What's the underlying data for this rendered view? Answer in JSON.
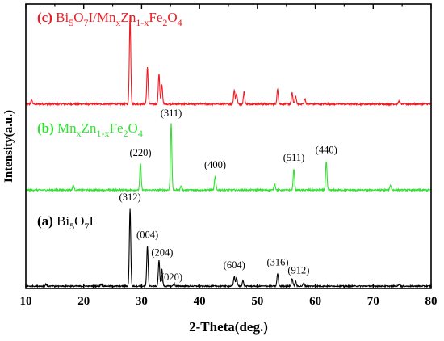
{
  "chart_data": {
    "type": "line",
    "xlabel": "2-Theta(deg.)",
    "ylabel": "Intensity(a.u.)",
    "xlim": [
      10,
      80
    ],
    "xticks": [
      "10",
      "20",
      "30",
      "40",
      "50",
      "60",
      "70",
      "80"
    ],
    "grid": false,
    "series": [
      {
        "letter": "(c)",
        "label_parts": [
          {
            "t": "Bi",
            "s": "n"
          },
          {
            "t": "5",
            "s": "sub"
          },
          {
            "t": "O",
            "s": "n"
          },
          {
            "t": "7",
            "s": "sub"
          },
          {
            "t": "I/Mn",
            "s": "n"
          },
          {
            "t": "x",
            "s": "sub"
          },
          {
            "t": "Zn",
            "s": "n"
          },
          {
            "t": "1-x",
            "s": "sub"
          },
          {
            "t": "Fe",
            "s": "n"
          },
          {
            "t": "2",
            "s": "sub"
          },
          {
            "t": "O",
            "s": "n"
          },
          {
            "t": "4",
            "s": "sub"
          }
        ],
        "color": "#ee1c24",
        "baseline": 0.3,
        "peaks": [
          [
            11.0,
            1.2
          ],
          [
            28.0,
            25.5
          ],
          [
            31.0,
            10.5
          ],
          [
            33.0,
            8.8
          ],
          [
            33.5,
            5.5
          ],
          [
            46.0,
            4.0
          ],
          [
            46.4,
            3.0
          ],
          [
            47.7,
            3.5
          ],
          [
            53.5,
            4.2
          ],
          [
            56.0,
            3.2
          ],
          [
            56.6,
            2.2
          ],
          [
            58.2,
            1.4
          ],
          [
            74.5,
            0.9
          ]
        ]
      },
      {
        "letter": "(b)",
        "label_parts": [
          {
            "t": "Mn",
            "s": "n"
          },
          {
            "t": "x",
            "s": "sub"
          },
          {
            "t": "Zn",
            "s": "n"
          },
          {
            "t": "1-x",
            "s": "sub"
          },
          {
            "t": "Fe",
            "s": "n"
          },
          {
            "t": "2",
            "s": "sub"
          },
          {
            "t": "O",
            "s": "n"
          },
          {
            "t": "4",
            "s": "sub"
          }
        ],
        "color": "#33e033",
        "baseline": 0.2,
        "peaks": [
          [
            18.2,
            1.5
          ],
          [
            29.8,
            8.0
          ],
          [
            35.1,
            20.5
          ],
          [
            36.8,
            1.2
          ],
          [
            42.7,
            4.2
          ],
          [
            53.0,
            1.8
          ],
          [
            56.3,
            6.5
          ],
          [
            61.9,
            8.8
          ],
          [
            73.0,
            1.5
          ]
        ],
        "peak_labels": [
          {
            "x": 29.8,
            "text": "(220)"
          },
          {
            "x": 35.1,
            "text": "(311)"
          },
          {
            "x": 42.7,
            "text": "(400)"
          },
          {
            "x": 56.3,
            "text": "(511)"
          },
          {
            "x": 61.9,
            "text": "(440)"
          }
        ]
      },
      {
        "letter": "(a)",
        "label_parts": [
          {
            "t": "Bi",
            "s": "n"
          },
          {
            "t": "5",
            "s": "sub"
          },
          {
            "t": "O",
            "s": "n"
          },
          {
            "t": "7",
            "s": "sub"
          },
          {
            "t": "I",
            "s": "n"
          }
        ],
        "color": "#000000",
        "baseline": 0.3,
        "peaks": [
          [
            13.5,
            0.8
          ],
          [
            23.0,
            0.8
          ],
          [
            28.0,
            32.0
          ],
          [
            31.0,
            16.5
          ],
          [
            33.0,
            10.5
          ],
          [
            33.5,
            7.0
          ],
          [
            35.6,
            1.2
          ],
          [
            46.0,
            4.0
          ],
          [
            46.4,
            3.5
          ],
          [
            47.5,
            2.2
          ],
          [
            53.5,
            5.2
          ],
          [
            56.0,
            3.2
          ],
          [
            56.6,
            2.0
          ],
          [
            58.0,
            1.2
          ],
          [
            74.5,
            0.9
          ]
        ],
        "peak_labels": [
          {
            "x": 28.0,
            "text": "(312)"
          },
          {
            "x": 31.0,
            "text": "(004)"
          },
          {
            "x": 33.0,
            "text": "(204)"
          },
          {
            "x": 33.5,
            "text": "(020)"
          },
          {
            "x": 46.0,
            "text": "(604)"
          },
          {
            "x": 53.5,
            "text": "(316)"
          },
          {
            "x": 56.0,
            "text": "(912)"
          }
        ]
      }
    ]
  }
}
